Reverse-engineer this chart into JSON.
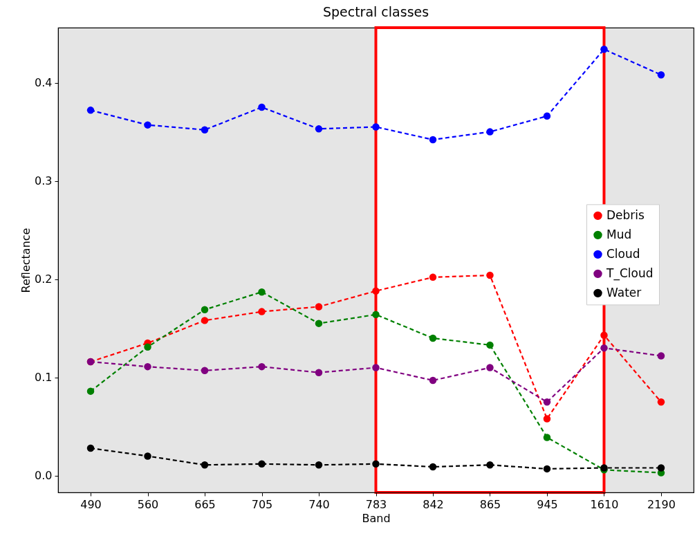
{
  "chart_data": {
    "type": "line",
    "title": "Spectral classes",
    "xlabel": "Band",
    "ylabel": "Reflectance",
    "categories": [
      "490",
      "560",
      "665",
      "705",
      "740",
      "783",
      "842",
      "865",
      "945",
      "1610",
      "2190"
    ],
    "ylim": [
      -0.017,
      0.456
    ],
    "yticks": [
      {
        "value": 0,
        "label": "0.0"
      },
      0.1,
      0.2,
      0.3,
      0.4
    ],
    "marker": "circle",
    "line_style": "dashed",
    "grid": false,
    "legend": "right",
    "bands": [
      {
        "axis": "x",
        "from": "783",
        "to": "1610",
        "color": "#ff0000"
      }
    ],
    "series": [
      {
        "name": "Debris",
        "color": "#ff0000",
        "values": [
          0.116,
          0.135,
          0.158,
          0.167,
          0.172,
          0.188,
          0.202,
          0.204,
          0.058,
          0.143,
          0.075
        ]
      },
      {
        "name": "Mud",
        "color": "#008000",
        "values": [
          0.086,
          0.131,
          0.169,
          0.187,
          0.155,
          0.164,
          0.14,
          0.133,
          0.039,
          0.006,
          0.003
        ]
      },
      {
        "name": "Cloud",
        "color": "#0000ff",
        "values": [
          0.372,
          0.357,
          0.352,
          0.375,
          0.353,
          0.355,
          0.342,
          0.35,
          0.366,
          0.434,
          0.408
        ]
      },
      {
        "name": "T_Cloud",
        "color": "#800080",
        "values": [
          0.116,
          0.111,
          0.107,
          0.111,
          0.105,
          0.11,
          0.097,
          0.11,
          0.075,
          0.13,
          0.122
        ]
      },
      {
        "name": "Water",
        "color": "#000000",
        "values": [
          0.028,
          0.02,
          0.011,
          0.012,
          0.011,
          0.012,
          0.009,
          0.011,
          0.007,
          0.008,
          0.008
        ]
      }
    ]
  }
}
